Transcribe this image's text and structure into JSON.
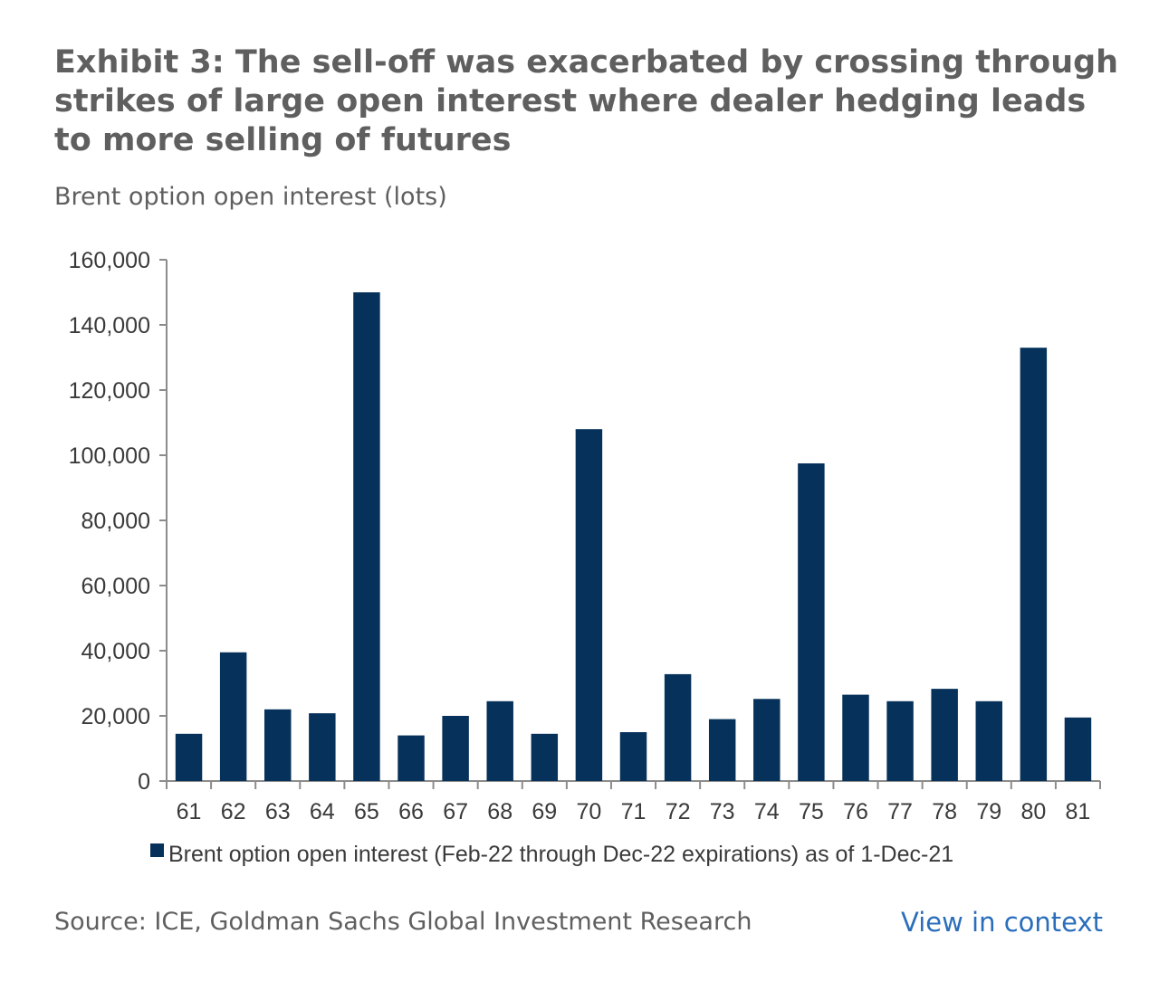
{
  "header": {
    "title": "Exhibit 3: The sell-off was exacerbated by crossing through strikes of large open interest where dealer hedging leads to more selling of futures",
    "subtitle": "Brent option open interest (lots)"
  },
  "footer": {
    "source": "Source: ICE, Goldman Sachs Global Investment Research",
    "link_label": "View in context"
  },
  "colors": {
    "bar": "#06315a",
    "axis": "#8c8c8c",
    "text": "#5f5f5f",
    "link": "#2a6ebb"
  },
  "chart_data": {
    "type": "bar",
    "title": "Exhibit 3: The sell-off was exacerbated by crossing through strikes of large open interest where dealer hedging leads to more selling of futures",
    "subtitle": "Brent option open interest (lots)",
    "categories": [
      "61",
      "62",
      "63",
      "64",
      "65",
      "66",
      "67",
      "68",
      "69",
      "70",
      "71",
      "72",
      "73",
      "74",
      "75",
      "76",
      "77",
      "78",
      "79",
      "80",
      "81"
    ],
    "series": [
      {
        "name": "Brent option open interest (Feb-22 through Dec-22 expirations) as of 1-Dec-21",
        "values": [
          14500,
          39500,
          22000,
          20800,
          150000,
          14000,
          20000,
          24500,
          14500,
          108000,
          15000,
          32800,
          19000,
          25200,
          97500,
          26500,
          24500,
          28300,
          24500,
          133000,
          19500
        ]
      }
    ],
    "ylim": [
      0,
      160000
    ],
    "yticks": [
      0,
      20000,
      40000,
      60000,
      80000,
      100000,
      120000,
      140000,
      160000
    ],
    "ytick_labels": [
      "0",
      "20,000",
      "40,000",
      "60,000",
      "80,000",
      "100,000",
      "120,000",
      "140,000",
      "160,000"
    ],
    "xlabel": "",
    "ylabel": "",
    "grid": false,
    "legend_position": "bottom"
  }
}
